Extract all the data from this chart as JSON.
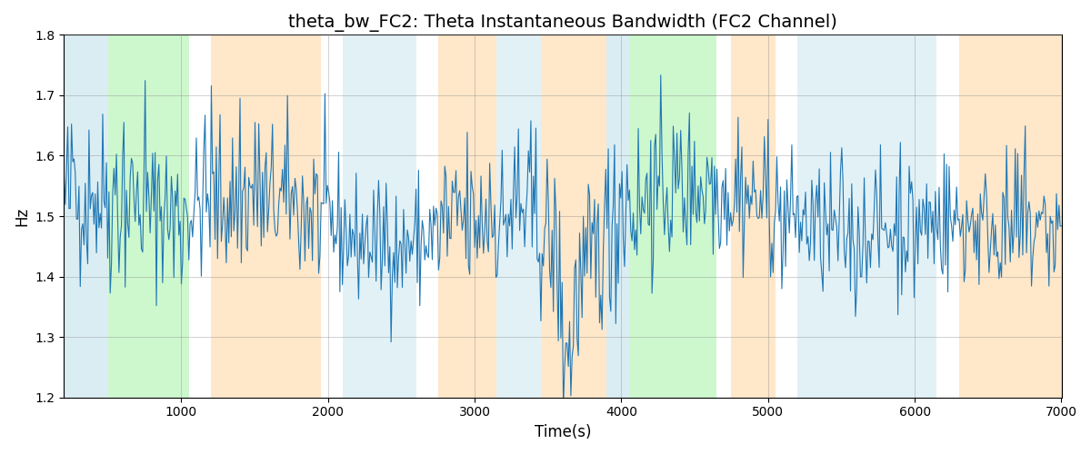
{
  "title": "theta_bw_FC2: Theta Instantaneous Bandwidth (FC2 Channel)",
  "xlabel": "Time(s)",
  "ylabel": "Hz",
  "xlim": [
    200,
    7000
  ],
  "ylim": [
    1.2,
    1.8
  ],
  "yticks": [
    1.2,
    1.3,
    1.4,
    1.5,
    1.6,
    1.7,
    1.8
  ],
  "xticks": [
    1000,
    2000,
    3000,
    4000,
    5000,
    6000,
    7000
  ],
  "line_color": "#1f77b4",
  "line_width": 0.8,
  "bg_regions": [
    {
      "xmin": 200,
      "xmax": 500,
      "color": "#add8e6",
      "alpha": 0.45
    },
    {
      "xmin": 500,
      "xmax": 1050,
      "color": "#90ee90",
      "alpha": 0.45
    },
    {
      "xmin": 1200,
      "xmax": 1950,
      "color": "#ffd59e",
      "alpha": 0.55
    },
    {
      "xmin": 2100,
      "xmax": 2600,
      "color": "#add8e6",
      "alpha": 0.35
    },
    {
      "xmin": 2750,
      "xmax": 3150,
      "color": "#ffd59e",
      "alpha": 0.55
    },
    {
      "xmin": 3150,
      "xmax": 3450,
      "color": "#add8e6",
      "alpha": 0.35
    },
    {
      "xmin": 3450,
      "xmax": 3900,
      "color": "#ffd59e",
      "alpha": 0.55
    },
    {
      "xmin": 3900,
      "xmax": 4050,
      "color": "#add8e6",
      "alpha": 0.45
    },
    {
      "xmin": 4050,
      "xmax": 4650,
      "color": "#90ee90",
      "alpha": 0.45
    },
    {
      "xmin": 4750,
      "xmax": 5050,
      "color": "#ffd59e",
      "alpha": 0.55
    },
    {
      "xmin": 5200,
      "xmax": 6150,
      "color": "#add8e6",
      "alpha": 0.35
    },
    {
      "xmin": 6300,
      "xmax": 7000,
      "color": "#ffd59e",
      "alpha": 0.55
    }
  ],
  "seed": 42,
  "n_points": 800,
  "x_start": 200,
  "x_end": 7000,
  "base_value": 1.5,
  "noise_std": 0.055,
  "title_fontsize": 14
}
